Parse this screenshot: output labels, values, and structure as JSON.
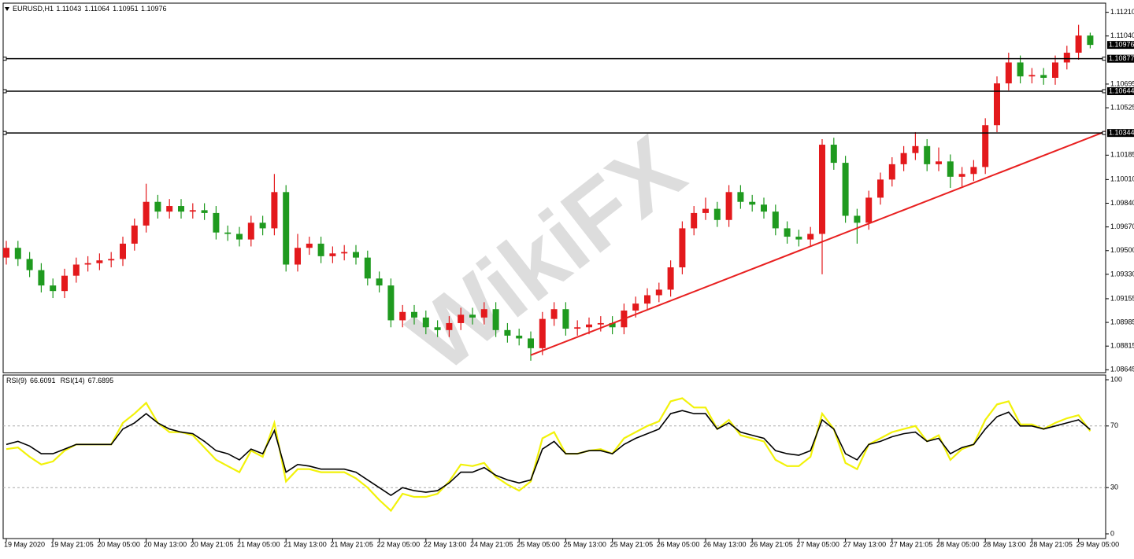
{
  "chart_data": [
    {
      "type": "candlestick",
      "symbol": "EURUSD,H1",
      "watermark": "WikiFX",
      "up_color": "#e3191c",
      "down_color": "#1f9a1f",
      "categories": [
        "19 May 2020",
        null,
        null,
        null,
        "19 May 21:05",
        null,
        null,
        null,
        "20 May 05:00",
        null,
        null,
        null,
        "20 May 13:00",
        null,
        null,
        null,
        "20 May 21:05",
        null,
        null,
        null,
        "21 May 05:00",
        null,
        null,
        null,
        "21 May 13:00",
        null,
        null,
        null,
        "21 May 21:05",
        null,
        null,
        null,
        "22 May 05:00",
        null,
        null,
        null,
        "22 May 13:00",
        null,
        null,
        null,
        "24 May 21:05",
        null,
        null,
        null,
        "25 May 05:00",
        null,
        null,
        null,
        "25 May 13:00",
        null,
        null,
        null,
        "25 May 21:05",
        null,
        null,
        null,
        "26 May 05:00",
        null,
        null,
        null,
        "26 May 13:00",
        null,
        null,
        null,
        "26 May 21:05",
        null,
        null,
        null,
        "27 May 05:00",
        null,
        null,
        null,
        "27 May 13:00",
        null,
        null,
        null,
        "27 May 21:05",
        null,
        null,
        null,
        "28 May 05:00",
        null,
        null,
        null,
        "28 May 13:00",
        null,
        null,
        null,
        "28 May 21:05",
        null,
        null,
        null,
        "29 May 05:00",
        null
      ],
      "open": [
        1.0945,
        1.0952,
        1.0944,
        1.0936,
        1.0925,
        1.0921,
        1.0932,
        1.094,
        1.0941,
        1.0943,
        1.0944,
        1.0955,
        1.0968,
        1.0985,
        1.0978,
        1.0982,
        1.0978,
        1.0979,
        1.0977,
        1.0963,
        1.0962,
        1.0958,
        1.097,
        1.0966,
        1.0992,
        1.094,
        1.0952,
        1.0955,
        1.0946,
        1.0948,
        1.0949,
        1.0945,
        1.093,
        1.0925,
        1.09,
        1.0906,
        1.0902,
        1.0895,
        1.0893,
        1.0898,
        1.0904,
        1.0902,
        1.0908,
        1.0893,
        1.0889,
        1.0887,
        1.088,
        1.0901,
        1.0908,
        1.0894,
        1.0895,
        1.0897,
        1.0898,
        1.0895,
        1.0907,
        1.0912,
        1.0918,
        1.0922,
        1.0938,
        1.0966,
        1.0977,
        1.098,
        1.0972,
        1.0992,
        1.0985,
        1.0983,
        1.0978,
        1.0966,
        1.096,
        1.0958,
        1.0962,
        1.1026,
        1.1013,
        1.0975,
        1.097,
        1.0988,
        1.1001,
        1.1012,
        1.102,
        1.1025,
        1.1012,
        1.1014,
        1.1003,
        1.1005,
        1.101,
        1.104,
        1.107,
        1.1085,
        1.1075,
        1.1076,
        1.1074,
        1.1085,
        1.1092,
        1.11043
      ],
      "high": [
        1.0957,
        1.0957,
        1.0949,
        1.0941,
        1.093,
        1.0937,
        1.0945,
        1.0946,
        1.0948,
        1.0949,
        1.096,
        1.0973,
        1.0998,
        1.099,
        1.0987,
        1.0987,
        1.0984,
        1.0984,
        1.0982,
        1.0968,
        1.0967,
        1.0975,
        1.0975,
        1.1005,
        1.0997,
        1.0962,
        1.096,
        1.096,
        1.0953,
        1.0954,
        1.0954,
        1.095,
        1.0935,
        1.093,
        1.0911,
        1.0911,
        1.0907,
        1.09,
        1.0903,
        1.0909,
        1.0909,
        1.0913,
        1.0913,
        1.0898,
        1.0894,
        1.0892,
        1.0906,
        1.0913,
        1.0913,
        1.09,
        1.0902,
        1.0903,
        1.0903,
        1.0912,
        1.0917,
        1.0923,
        1.0927,
        1.0943,
        1.0971,
        1.0982,
        1.0988,
        1.0985,
        1.0997,
        1.0997,
        1.099,
        1.0988,
        1.0983,
        1.0971,
        1.0965,
        1.0967,
        1.103,
        1.1031,
        1.1018,
        1.098,
        1.0993,
        1.1006,
        1.1017,
        1.1025,
        1.1035,
        1.103,
        1.1024,
        1.1019,
        1.101,
        1.1015,
        1.1045,
        1.1075,
        1.1092,
        1.109,
        1.1081,
        1.1081,
        1.109,
        1.1097,
        1.1112,
        1.11064
      ],
      "low": [
        1.094,
        1.0939,
        1.0931,
        1.092,
        1.0916,
        1.0916,
        1.0927,
        1.0935,
        1.0936,
        1.0938,
        1.0939,
        1.095,
        1.0963,
        1.0973,
        1.0973,
        1.0973,
        1.0973,
        1.0972,
        1.0958,
        1.0957,
        1.0953,
        1.0953,
        1.0961,
        1.0961,
        1.0935,
        1.0935,
        1.0947,
        1.0941,
        1.0941,
        1.0943,
        1.094,
        1.0925,
        1.092,
        1.0895,
        1.0895,
        1.0897,
        1.089,
        1.0888,
        1.0888,
        1.0893,
        1.0897,
        1.0897,
        1.0888,
        1.0884,
        1.0882,
        1.0871,
        1.0875,
        1.0896,
        1.0889,
        1.0889,
        1.089,
        1.0892,
        1.089,
        1.089,
        1.0902,
        1.0907,
        1.0913,
        1.0917,
        1.0933,
        1.0961,
        1.0972,
        1.0967,
        1.0967,
        1.098,
        1.0978,
        1.0973,
        1.0961,
        1.0955,
        1.0953,
        1.0953,
        1.0933,
        1.1008,
        1.097,
        1.0955,
        1.0965,
        1.0983,
        1.0996,
        1.1007,
        1.1015,
        1.1007,
        1.1007,
        1.0995,
        1.0996,
        1.1,
        1.1005,
        1.1035,
        1.1065,
        1.107,
        1.107,
        1.1069,
        1.1069,
        1.108,
        1.1087,
        1.10951
      ],
      "close": [
        1.0952,
        1.0944,
        1.0936,
        1.0925,
        1.0921,
        1.0932,
        1.094,
        1.0941,
        1.0943,
        1.0944,
        1.0955,
        1.0968,
        1.0985,
        1.0978,
        1.0982,
        1.0978,
        1.0979,
        1.0977,
        1.0963,
        1.0962,
        1.0958,
        1.097,
        1.0966,
        1.0992,
        1.094,
        1.0952,
        1.0955,
        1.0946,
        1.0948,
        1.0949,
        1.0945,
        1.093,
        1.0925,
        1.09,
        1.0906,
        1.0902,
        1.0895,
        1.0893,
        1.0898,
        1.0904,
        1.0902,
        1.0908,
        1.0893,
        1.0889,
        1.0887,
        1.088,
        1.0901,
        1.0908,
        1.0894,
        1.0895,
        1.0897,
        1.0898,
        1.0895,
        1.0907,
        1.0912,
        1.0918,
        1.0922,
        1.0938,
        1.0966,
        1.0977,
        1.098,
        1.0972,
        1.0992,
        1.0985,
        1.0983,
        1.0978,
        1.0966,
        1.096,
        1.0958,
        1.0962,
        1.1026,
        1.1013,
        1.0975,
        1.097,
        1.0988,
        1.1001,
        1.1012,
        1.102,
        1.1025,
        1.1012,
        1.1014,
        1.1003,
        1.1005,
        1.101,
        1.104,
        1.107,
        1.1085,
        1.1075,
        1.1076,
        1.1074,
        1.1085,
        1.1092,
        1.11043,
        1.10976
      ],
      "ylim": [
        1.0863,
        1.1127
      ],
      "yticks": [
        {
          "value": 1.1121,
          "label": "1.11210"
        },
        {
          "value": 1.1104,
          "label": "1.11040"
        },
        1.10695,
        1.10525,
        1.10185,
        {
          "value": 1.1001,
          "label": "1.10010"
        },
        {
          "value": 1.0984,
          "label": "1.09840"
        },
        {
          "value": 1.0967,
          "label": "1.09670"
        },
        {
          "value": 1.095,
          "label": "1.09500"
        },
        {
          "value": 1.0933,
          "label": "1.09330"
        },
        1.09155,
        1.08985,
        1.08815,
        1.08645
      ],
      "hlines": [
        1.10877,
        1.10644,
        1.10344
      ],
      "trendline": {
        "x": [
          45,
          96
        ],
        "y": [
          1.0875,
          1.1041
        ],
        "color": "#e82020"
      }
    },
    {
      "type": "line",
      "series": [
        {
          "name": "RSI(9)",
          "color": "#f2f20a",
          "values": [
            55,
            56,
            50,
            45,
            47,
            54,
            58,
            58,
            58,
            58,
            72,
            78,
            85,
            72,
            66,
            66,
            64,
            56,
            48,
            44,
            40,
            54,
            50,
            72,
            34,
            42,
            42,
            40,
            40,
            40,
            36,
            30,
            22,
            15,
            26,
            24,
            24,
            26,
            34,
            45,
            44,
            46,
            37,
            32,
            28,
            34,
            62,
            66,
            52,
            52,
            54,
            55,
            52,
            62,
            66,
            70,
            73,
            86,
            88,
            82,
            82,
            68,
            74,
            64,
            62,
            60,
            48,
            44,
            44,
            50,
            78,
            68,
            46,
            42,
            58,
            62,
            66,
            68,
            70,
            60,
            64,
            48,
            55,
            58,
            74,
            84,
            86,
            71,
            71,
            68,
            72,
            75,
            77,
            66.6091
          ]
        },
        {
          "name": "RSI(14)",
          "color": "#000000",
          "values": [
            58,
            60,
            57,
            52,
            52,
            55,
            58,
            58,
            58,
            58,
            68,
            72,
            78,
            72,
            68,
            66,
            65,
            60,
            54,
            52,
            48,
            55,
            52,
            67,
            40,
            45,
            44,
            42,
            42,
            42,
            40,
            35,
            30,
            25,
            30,
            28,
            27,
            28,
            33,
            40,
            40,
            43,
            38,
            35,
            33,
            35,
            55,
            60,
            52,
            52,
            54,
            54,
            52,
            58,
            62,
            65,
            68,
            78,
            80,
            78,
            78,
            68,
            72,
            66,
            64,
            62,
            54,
            52,
            51,
            54,
            74,
            68,
            52,
            48,
            58,
            60,
            63,
            65,
            66,
            60,
            62,
            52,
            56,
            58,
            68,
            76,
            79,
            70,
            70,
            68,
            70,
            72,
            74,
            67.6895
          ]
        }
      ],
      "ylim": [
        0,
        100
      ],
      "yticks": [
        100,
        70,
        30,
        0
      ],
      "levels": [
        70,
        30
      ]
    }
  ]
}
